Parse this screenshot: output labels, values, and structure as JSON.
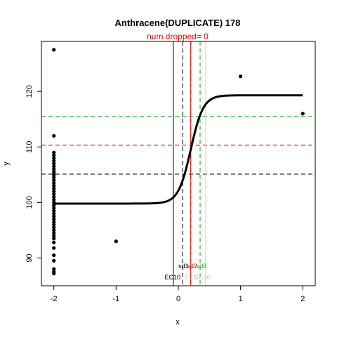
{
  "chart_data": {
    "type": "scatter",
    "title": "Anthracene(DUPLICATE) 178",
    "subtitle": "num dropped= 0",
    "xlabel": "x",
    "ylabel": "y",
    "xlim": [
      -2.2,
      2.2
    ],
    "ylim": [
      85,
      129
    ],
    "x_ticks": [
      -2,
      -1,
      0,
      1,
      2
    ],
    "x_tick_labels": [
      "-2",
      "-1",
      "0",
      "1",
      "2"
    ],
    "y_ticks": [
      90,
      100,
      110,
      120
    ],
    "y_tick_labels": [
      "90",
      "100",
      "110",
      "120"
    ],
    "grid": false,
    "legend": "none",
    "series": [
      {
        "kind": "points",
        "points": [
          [
            -2,
            127.5
          ],
          [
            -2,
            112
          ],
          [
            -2,
            109
          ],
          [
            -2,
            108.5
          ],
          [
            -2,
            108
          ],
          [
            -2,
            107.5
          ],
          [
            -2,
            107
          ],
          [
            -2,
            106.5
          ],
          [
            -2,
            106
          ],
          [
            -2,
            105.5
          ],
          [
            -2,
            105
          ],
          [
            -2,
            104.5
          ],
          [
            -2,
            104
          ],
          [
            -2,
            103.5
          ],
          [
            -2,
            103
          ],
          [
            -2,
            102.5
          ],
          [
            -2,
            102
          ],
          [
            -2,
            101.5
          ],
          [
            -2,
            101
          ],
          [
            -2,
            100.5
          ],
          [
            -2,
            100
          ],
          [
            -2,
            99.5
          ],
          [
            -2,
            99
          ],
          [
            -2,
            98.5
          ],
          [
            -2,
            98
          ],
          [
            -2,
            97.5
          ],
          [
            -2,
            97
          ],
          [
            -2,
            96.5
          ],
          [
            -2,
            96
          ],
          [
            -2,
            95.5
          ],
          [
            -2,
            95
          ],
          [
            -2,
            94.5
          ],
          [
            -2,
            94
          ],
          [
            -2,
            93.5
          ],
          [
            -2,
            92.8
          ],
          [
            -2,
            91.8
          ],
          [
            -2,
            90.5
          ],
          [
            -2,
            89.5
          ],
          [
            -2,
            88
          ],
          [
            -2,
            87.5
          ],
          [
            -2,
            87.2
          ],
          [
            -1,
            93
          ],
          [
            1,
            122.7
          ],
          [
            2,
            116
          ]
        ],
        "color": "#000000"
      },
      {
        "kind": "fitted-curve",
        "model": "logistic",
        "bottom": 99.8,
        "top": 119.3,
        "midpoint": 0.2,
        "scale": 0.1,
        "x_range": [
          -2,
          2
        ],
        "color": "#000000"
      }
    ],
    "horizontal_lines": [
      {
        "y": 105.1,
        "color": "#000000",
        "style": "dashed"
      },
      {
        "y": 110.3,
        "color": "#cc0000",
        "style": "dashed"
      },
      {
        "y": 115.5,
        "color": "#00aa00",
        "style": "dashed"
      }
    ],
    "vertical_lines": [
      {
        "x": -0.08,
        "color": "#000000",
        "style": "solid"
      },
      {
        "x": 0.07,
        "color": "#000000",
        "style": "dashed"
      },
      {
        "x": 0.2,
        "color": "#cc0000",
        "style": "solid"
      },
      {
        "x": 0.2,
        "color": "#cc0000",
        "style": "dashed"
      },
      {
        "x": 0.35,
        "color": "#00aa00",
        "style": "dashed"
      },
      {
        "x": 0.44,
        "color": "#cccccc",
        "style": "solid"
      }
    ],
    "annotations": {
      "sd_labels": [
        {
          "text": "sd1",
          "color": "#000000"
        },
        {
          "text": "sd2",
          "color": "#cc0000"
        },
        {
          "text": "sd3",
          "color": "#00aa00"
        }
      ],
      "ec_labels": [
        {
          "text": "EC10",
          "color": "#000000"
        },
        {
          "text": "EC50",
          "color": "#cccccc"
        },
        {
          "text": "EC90",
          "color": "#cccccc"
        }
      ]
    }
  }
}
